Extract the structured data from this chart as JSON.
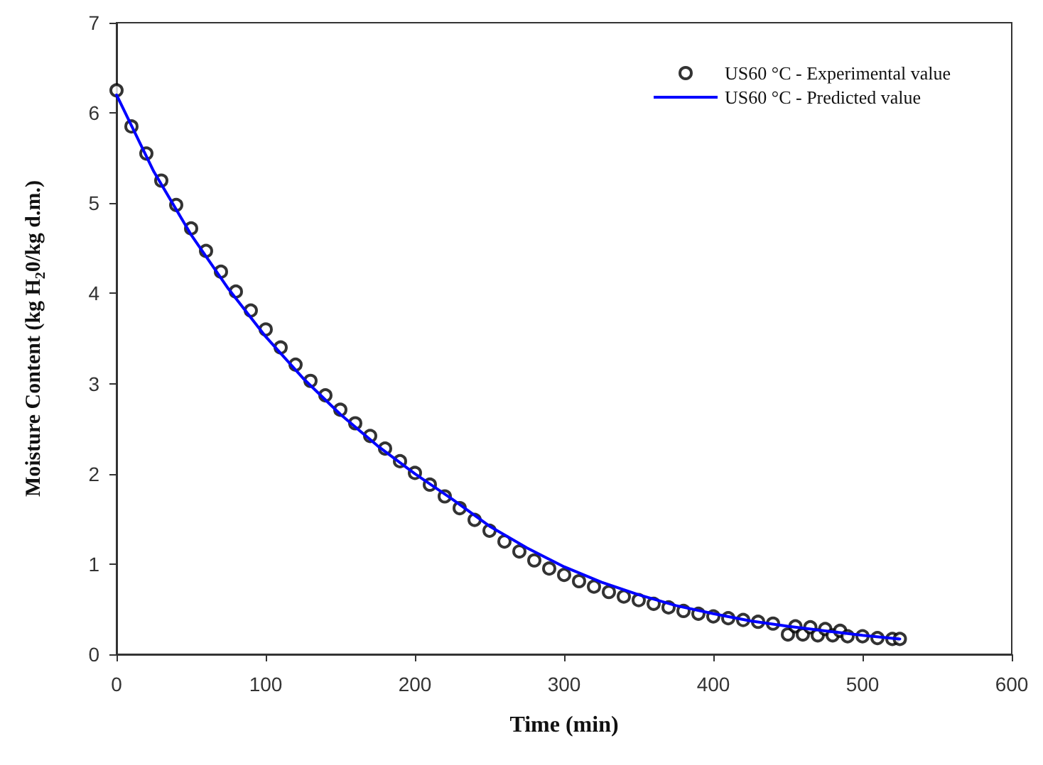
{
  "chart_data": {
    "type": "scatter",
    "xlabel": "Time (min)",
    "ylabel": "Moisture Content (kg H$_{2}$0/kg d.m.)",
    "xlim": [
      0,
      600
    ],
    "xticks": [
      0,
      100,
      200,
      300,
      400,
      500,
      600
    ],
    "ylim": [
      0,
      7
    ],
    "yticks": [
      0,
      1,
      2,
      3,
      4,
      5,
      6,
      7
    ],
    "grid": false,
    "legend": "top right",
    "marker": "circle",
    "series": [
      {
        "name": "US60 °C - Experimental value",
        "color": "#000000",
        "x": [
          0,
          10,
          20,
          30,
          40,
          50,
          60,
          70,
          80,
          90,
          100,
          110,
          120,
          130,
          140,
          150,
          160,
          170,
          180,
          190,
          200,
          210,
          220,
          230,
          240,
          250,
          260,
          270,
          280,
          290,
          300,
          310,
          320,
          330,
          340,
          350,
          360,
          370,
          380,
          390,
          400,
          410,
          420,
          430,
          440,
          450,
          455,
          460,
          465,
          470,
          475,
          480,
          485,
          490,
          500,
          510,
          520,
          525
        ],
        "values": [
          6.25,
          5.85,
          5.55,
          5.25,
          4.98,
          4.72,
          4.47,
          4.24,
          4.02,
          3.81,
          3.6,
          3.4,
          3.21,
          3.03,
          2.87,
          2.71,
          2.56,
          2.42,
          2.28,
          2.14,
          2.01,
          1.88,
          1.75,
          1.62,
          1.49,
          1.37,
          1.25,
          1.14,
          1.04,
          0.95,
          0.88,
          0.81,
          0.75,
          0.69,
          0.64,
          0.6,
          0.56,
          0.52,
          0.48,
          0.45,
          0.42,
          0.4,
          0.38,
          0.36,
          0.34,
          0.22,
          0.31,
          0.22,
          0.3,
          0.21,
          0.28,
          0.21,
          0.26,
          0.2,
          0.2,
          0.18,
          0.17,
          0.17
        ]
      },
      {
        "name": "US60 °C - Predicted value",
        "type": "line",
        "color": "#0000ff",
        "marker": "none",
        "line_style": "solid",
        "x": [
          0,
          25,
          50,
          75,
          100,
          125,
          150,
          175,
          200,
          225,
          250,
          275,
          300,
          325,
          350,
          375,
          400,
          425,
          450,
          475,
          500,
          525
        ],
        "values": [
          6.2,
          5.35,
          4.65,
          4.05,
          3.52,
          3.06,
          2.66,
          2.31,
          2.0,
          1.72,
          1.42,
          1.18,
          0.97,
          0.8,
          0.66,
          0.54,
          0.45,
          0.37,
          0.31,
          0.26,
          0.21,
          0.17
        ]
      }
    ]
  }
}
